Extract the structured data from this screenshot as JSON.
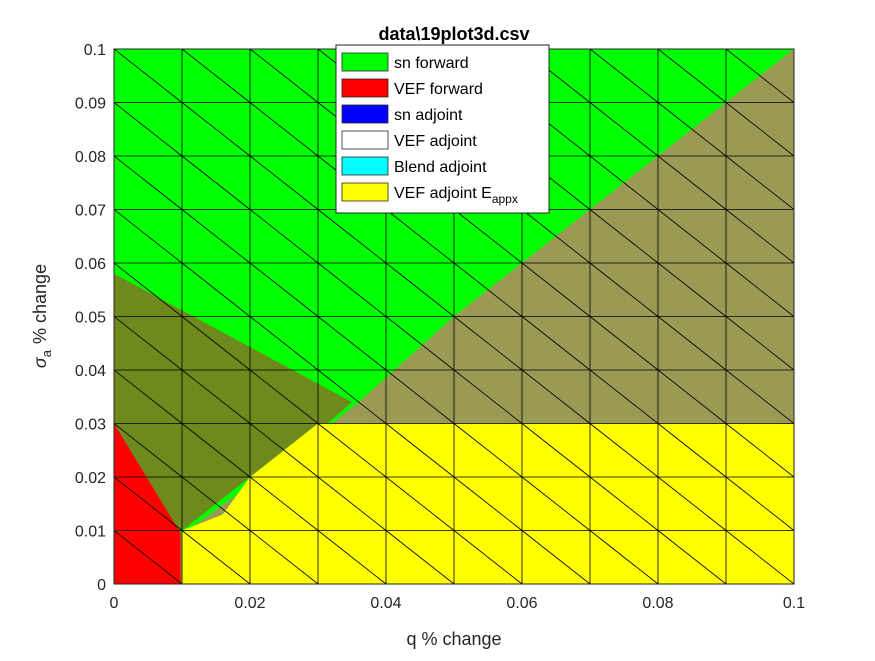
{
  "chart_data": {
    "type": "area",
    "title": "data\\19plot3d.csv",
    "xlabel": "q % change",
    "ylabel": "% change",
    "ylabel_symbol": "σ",
    "ylabel_subscript": "a",
    "xlim": [
      0,
      0.1
    ],
    "ylim": [
      0,
      0.1
    ],
    "x_ticks": [
      0,
      0.02,
      0.04,
      0.06,
      0.08,
      0.1
    ],
    "x_tick_labels": [
      "0",
      "0.02",
      "0.04",
      "0.06",
      "0.08",
      "0.1"
    ],
    "y_ticks": [
      0,
      0.01,
      0.02,
      0.03,
      0.04,
      0.05,
      0.06,
      0.07,
      0.08,
      0.09,
      0.1
    ],
    "y_tick_labels": [
      "0",
      "0.01",
      "0.02",
      "0.03",
      "0.04",
      "0.05",
      "0.06",
      "0.07",
      "0.08",
      "0.09",
      "0.1"
    ],
    "mesh_step": 0.01,
    "grid": true,
    "legend_position": "top-center",
    "legend": [
      {
        "label": "sn forward",
        "color": "#00ff00"
      },
      {
        "label": "VEF forward",
        "color": "#ff0000"
      },
      {
        "label": "sn adjoint",
        "color": "#0000ff"
      },
      {
        "label": "VEF adjoint",
        "color": "#ffffff"
      },
      {
        "label": "Blend adjoint",
        "color": "#00ffff"
      },
      {
        "label": "VEF adjoint E",
        "subscript": "appx",
        "color": "#ffff00"
      }
    ],
    "regions": [
      {
        "name": "sn forward",
        "color": "#00ff00",
        "polygon": [
          [
            0,
            0
          ],
          [
            0.1,
            0
          ],
          [
            0.1,
            0.1
          ],
          [
            0,
            0.1
          ]
        ]
      },
      {
        "name": "VEF adjoint E appx overlap",
        "color": "#9a9a55",
        "polygon": [
          [
            0.0,
            0.0
          ],
          [
            0.1,
            0.0
          ],
          [
            0.1,
            0.1
          ],
          [
            0.05,
            0.05
          ],
          [
            0.036,
            0.034
          ],
          [
            0.026,
            0.024
          ],
          [
            0.0,
            0.0
          ]
        ]
      },
      {
        "name": "sn forward / VEF forward mixed",
        "color": "#6f8a1c",
        "polygon": [
          [
            0,
            0.058
          ],
          [
            0.035,
            0.034
          ],
          [
            0.026,
            0.024
          ],
          [
            0.02,
            0.02
          ],
          [
            0.01,
            0.01
          ],
          [
            0,
            0
          ]
        ]
      },
      {
        "name": "VEF adjoint E appx",
        "color": "#ffff00",
        "polygon": [
          [
            0.01,
            0
          ],
          [
            0.1,
            0
          ],
          [
            0.1,
            0.03
          ],
          [
            0.03,
            0.03
          ],
          [
            0.02,
            0.02
          ],
          [
            0.016,
            0.013
          ],
          [
            0.01,
            0.01
          ]
        ]
      },
      {
        "name": "VEF forward",
        "color": "#ff0000",
        "polygon": [
          [
            0,
            0
          ],
          [
            0.0098,
            0
          ],
          [
            0.0098,
            0.0095
          ],
          [
            0,
            0.03
          ]
        ]
      }
    ]
  }
}
